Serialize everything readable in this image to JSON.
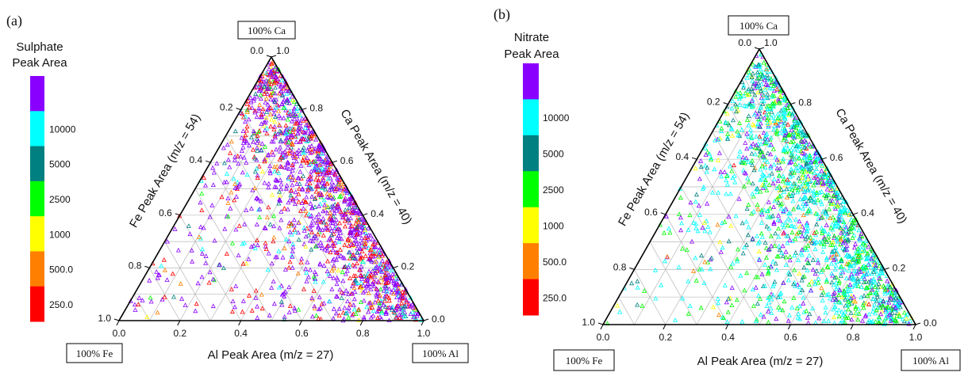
{
  "chart_data": [
    {
      "type": "scatter",
      "panel_label": "(a)",
      "colorbar": {
        "title_lines": [
          "Sulphate",
          "Peak Area"
        ],
        "bins": [
          {
            "label": "",
            "color": "#8a00ff"
          },
          {
            "label": "10000",
            "color": "#00ffff"
          },
          {
            "label": "5000",
            "color": "#008080"
          },
          {
            "label": "2500",
            "color": "#00ff00"
          },
          {
            "label": "1000",
            "color": "#ffff00"
          },
          {
            "label": "500.0",
            "color": "#ff8000"
          },
          {
            "label": "250.0",
            "color": "#ff0000"
          }
        ]
      },
      "corners": {
        "top": "100% Ca",
        "left": "100% Fe",
        "right": "100% Al"
      },
      "axis_labels": {
        "left": "Fe Peak Area (m/z = 54)",
        "right": "Ca Peak Area (m/z = 40)",
        "bottom": "Al Peak Area (m/z = 27)"
      },
      "bottom_ticks": [
        "0.0",
        "0.2",
        "0.4",
        "0.6",
        "0.8",
        "1.0"
      ],
      "left_ticks": [
        "0.0",
        "0.2",
        "0.4",
        "0.6",
        "0.8",
        "1.0"
      ],
      "right_ticks": [
        "1.0",
        "0.8",
        "0.6",
        "0.4",
        "0.2",
        "0.0"
      ],
      "color_mix": [
        0.55,
        0.08,
        0.05,
        0.03,
        0.03,
        0.05,
        0.21
      ],
      "point_count": 1600
    },
    {
      "type": "scatter",
      "panel_label": "(b)",
      "colorbar": {
        "title_lines": [
          "Nitrate",
          "Peak Area"
        ],
        "bins": [
          {
            "label": "",
            "color": "#8a00ff"
          },
          {
            "label": "10000",
            "color": "#00ffff"
          },
          {
            "label": "5000",
            "color": "#008080"
          },
          {
            "label": "2500",
            "color": "#00ff00"
          },
          {
            "label": "1000",
            "color": "#ffff00"
          },
          {
            "label": "500.0",
            "color": "#ff8000"
          },
          {
            "label": "250.0",
            "color": "#ff0000"
          }
        ]
      },
      "corners": {
        "top": "100% Ca",
        "left": "100% Fe",
        "right": "100% Al"
      },
      "axis_labels": {
        "left": "Fe Peak Area (m/z = 54)",
        "right": "Ca Peak Area (m/z = 40)",
        "bottom": "Al Peak Area (m/z = 27)"
      },
      "bottom_ticks": [
        "0.0",
        "0.2",
        "0.4",
        "0.6",
        "0.8",
        "1.0"
      ],
      "left_ticks": [
        "0.0",
        "0.2",
        "0.4",
        "0.6",
        "0.8",
        "1.0"
      ],
      "right_ticks": [
        "1.0",
        "0.8",
        "0.6",
        "0.4",
        "0.2",
        "0.0"
      ],
      "color_mix": [
        0.14,
        0.42,
        0.14,
        0.22,
        0.05,
        0.02,
        0.01
      ],
      "point_count": 1700
    }
  ]
}
